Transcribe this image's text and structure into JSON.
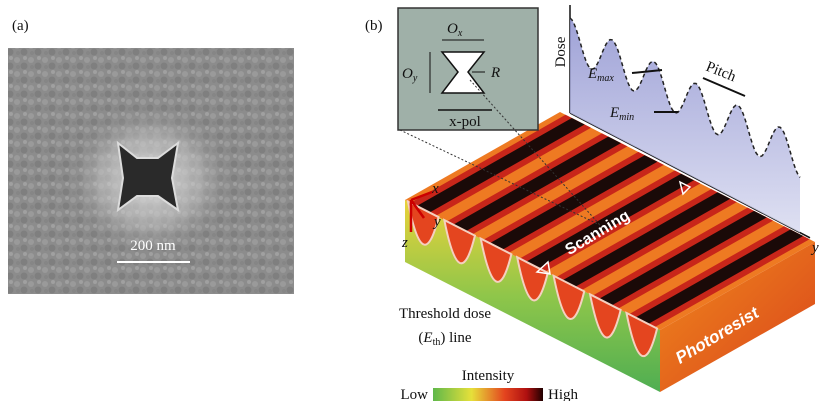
{
  "panel_a": {
    "label": "(a)",
    "scale_bar": "200 nm"
  },
  "panel_b": {
    "label": "(b)",
    "inset": {
      "ox": {
        "base": "O",
        "sub": "x"
      },
      "oy": {
        "base": "O",
        "sub": "y"
      },
      "r": "R",
      "pol": "x-pol"
    },
    "dose_axis": "Dose",
    "e_max": {
      "base": "E",
      "sub": "max"
    },
    "e_min": {
      "base": "E",
      "sub": "min"
    },
    "pitch": "Pitch",
    "axes": {
      "x": "x",
      "y": "y",
      "z": "z",
      "y_right": "y"
    },
    "scanning": "Scanning",
    "threshold": {
      "line1": "Threshold dose",
      "open": "(",
      "base": "E",
      "sub": "th",
      "close": ") line"
    },
    "photoresist": "Photoresist",
    "colorbar": {
      "title": "Intensity",
      "low": "Low",
      "high": "High"
    }
  }
}
